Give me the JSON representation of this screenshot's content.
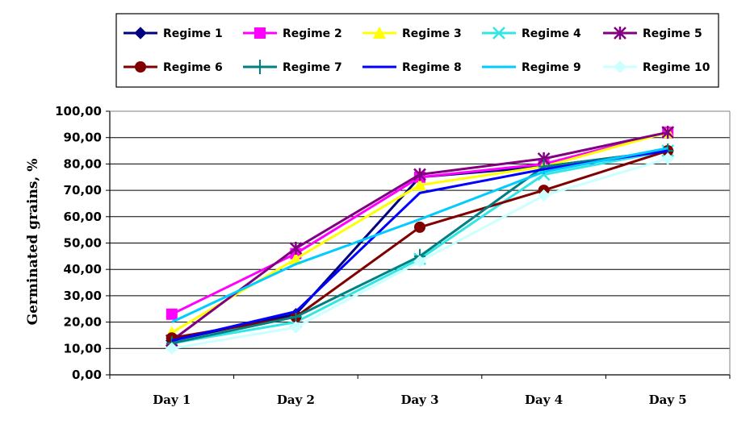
{
  "chart_data": {
    "type": "line",
    "title": "",
    "xlabel": "",
    "ylabel": "Germinated grains, %",
    "categories": [
      "Day 1",
      "Day 2",
      "Day 3",
      "Day 4",
      "Day 5"
    ],
    "ylim": [
      0,
      100
    ],
    "ytick_labels": [
      "0,00",
      "10,00",
      "20,00",
      "30,00",
      "40,00",
      "50,00",
      "60,00",
      "70,00",
      "80,00",
      "90,00",
      "100,00"
    ],
    "grid": true,
    "legend_position": "top",
    "series": [
      {
        "name": "Regime 1",
        "color": "#000080",
        "marker": "diamond",
        "values": [
          13,
          23,
          75,
          79,
          85
        ]
      },
      {
        "name": "Regime 2",
        "color": "#ff00ff",
        "marker": "square",
        "values": [
          23,
          46,
          75,
          80,
          92
        ]
      },
      {
        "name": "Regime 3",
        "color": "#ffff00",
        "marker": "triangle",
        "values": [
          16,
          44,
          72,
          79,
          92
        ]
      },
      {
        "name": "Regime 4",
        "color": "#33e6e6",
        "marker": "x",
        "values": [
          12,
          20,
          44,
          76,
          85
        ]
      },
      {
        "name": "Regime 5",
        "color": "#800080",
        "marker": "star",
        "values": [
          13,
          48,
          76,
          82,
          92
        ]
      },
      {
        "name": "Regime 6",
        "color": "#800000",
        "marker": "circle",
        "values": [
          14,
          22,
          56,
          70,
          85
        ]
      },
      {
        "name": "Regime 7",
        "color": "#008080",
        "marker": "plus",
        "values": [
          12,
          22,
          45,
          79,
          85
        ]
      },
      {
        "name": "Regime 8",
        "color": "#0000ff",
        "marker": "none",
        "values": [
          13,
          24,
          69,
          78,
          85
        ]
      },
      {
        "name": "Regime 9",
        "color": "#00ccff",
        "marker": "none",
        "values": [
          20,
          42,
          59,
          77,
          86
        ]
      },
      {
        "name": "Regime 10",
        "color": "#ccffff",
        "marker": "diamond",
        "values": [
          10,
          18,
          43,
          68,
          82
        ]
      }
    ]
  }
}
